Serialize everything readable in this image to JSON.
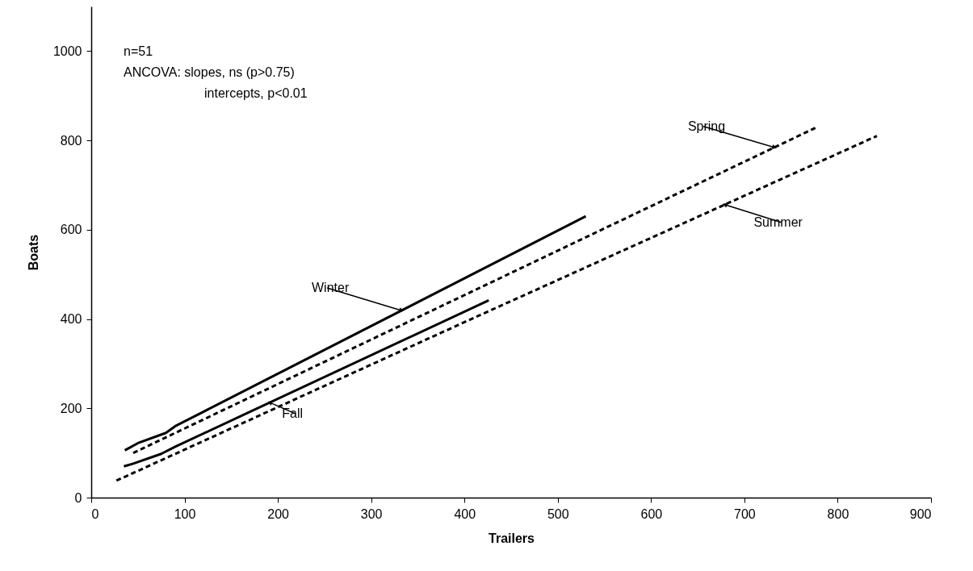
{
  "chart_data": {
    "type": "line",
    "xlabel": "Trailers",
    "ylabel": "Boats",
    "xlim": [
      0,
      900
    ],
    "xticks": [
      0,
      100,
      200,
      300,
      400,
      500,
      600,
      700,
      800,
      900
    ],
    "ylim": [
      0,
      1100
    ],
    "yticks": [
      0,
      200,
      400,
      600,
      800,
      1000
    ],
    "grid": false,
    "marker": "none",
    "annotations": [
      "n=51",
      "ANCOVA: slopes, ns (p>0.75)",
      "intercepts, p<0.01"
    ],
    "series": [
      {
        "name": "Winter",
        "color": "#000000",
        "line_style": "solid",
        "x": [
          36,
          50,
          80,
          90,
          530
        ],
        "values": [
          106,
          122,
          145,
          160,
          630
        ]
      },
      {
        "name": "Fall",
        "color": "#000000",
        "line_style": "solid",
        "x": [
          35,
          45,
          75,
          90,
          426
        ],
        "values": [
          70,
          76,
          98,
          114,
          442
        ]
      },
      {
        "name": "Spring",
        "color": "#000000",
        "line_style": "dashed",
        "x": [
          45,
          776
        ],
        "values": [
          100,
          828
        ]
      },
      {
        "name": "Summer",
        "color": "#000000",
        "line_style": "dashed",
        "x": [
          27,
          400,
          842
        ],
        "values": [
          38,
          393,
          810
        ]
      }
    ]
  }
}
